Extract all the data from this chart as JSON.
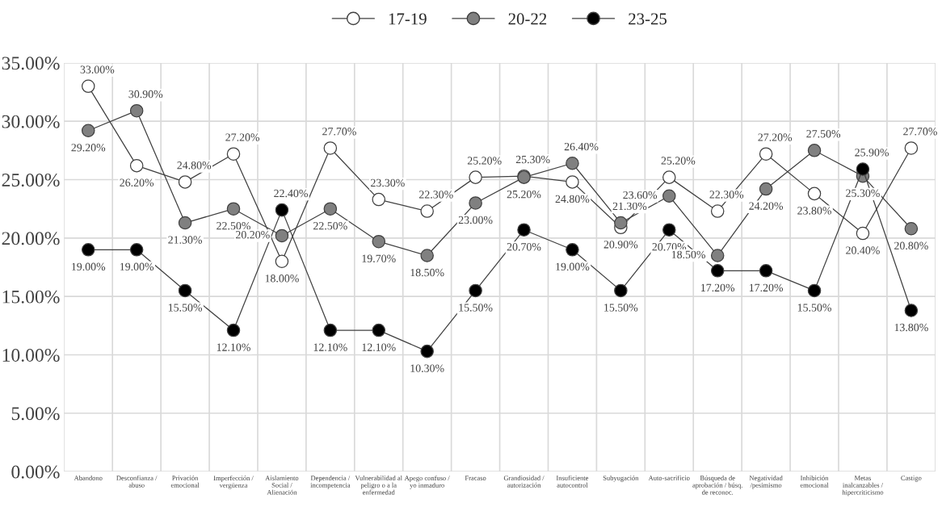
{
  "chart_data": {
    "type": "line",
    "categories": [
      "Abandono",
      "Desconfianza /\nabuso",
      "Privación\nemocional",
      "Imperfección /\nvergüenza",
      "Aislamiento\nSocial /\nAlienación",
      "Dependencia /\nincompetencia",
      "Vulnerabilidad al\npeligro o a la\nenfermedad",
      "Apego confuso /\nyo inmaduro",
      "Fracaso",
      "Grandiosidad /\nautorización",
      "Insuficiente\nautocontrol",
      "Subyugación",
      "Auto-sacrificio",
      "Búsqueda de\naprobación / búsq.\nde reconoc.",
      "Negatividad\n/pesimismo",
      "Inhibición\nemocional",
      "Metas\ninalcanzables /\nhipercriticismo",
      "Castigo"
    ],
    "series": [
      {
        "name": "17-19",
        "color": "#ffffff",
        "values": [
          33.0,
          26.2,
          24.8,
          27.2,
          18.0,
          27.7,
          23.3,
          22.3,
          25.2,
          25.3,
          24.8,
          20.9,
          25.2,
          22.3,
          27.2,
          23.8,
          20.4,
          27.7
        ],
        "value_labels": [
          "33.00%",
          "26.20%",
          "24.80%",
          "27.20%",
          "18.00%",
          "27.70%",
          "23.30%",
          "22.30%",
          "25.20%",
          "25.30%",
          "24.80%",
          "20.90%",
          "25.20%",
          "22.30%",
          "27.20%",
          "23.80%",
          "20.40%",
          "27.70%"
        ]
      },
      {
        "name": "20-22",
        "color": "#808080",
        "values": [
          29.2,
          30.9,
          21.3,
          22.5,
          20.2,
          22.5,
          19.7,
          18.5,
          23.0,
          25.2,
          26.4,
          21.3,
          23.6,
          18.5,
          24.2,
          27.5,
          25.3,
          20.8
        ],
        "value_labels": [
          "29.20%",
          "30.90%",
          "21.30%",
          "22.50%",
          "20.20%",
          "22.50%",
          "19.70%",
          "18.50%",
          "23.00%",
          "25.20%",
          "26.40%",
          "21.30%",
          "23.60%",
          "18.50%",
          "24.20%",
          "27.50%",
          "25.30%",
          "20.80%"
        ]
      },
      {
        "name": "23-25",
        "color": "#000000",
        "values": [
          19.0,
          19.0,
          15.5,
          12.1,
          22.4,
          12.1,
          12.1,
          10.3,
          15.5,
          20.7,
          19.0,
          15.5,
          20.7,
          17.2,
          17.2,
          15.5,
          25.9,
          13.8
        ],
        "value_labels": [
          "19.00%",
          "19.00%",
          "15.50%",
          "12.10%",
          "22.40%",
          "12.10%",
          "12.10%",
          "10.30%",
          "15.50%",
          "20.70%",
          "19.00%",
          "15.50%",
          "20.70%",
          "17.20%",
          "17.20%",
          "15.50%",
          "25.90%",
          "13.80%"
        ]
      }
    ],
    "ylim": [
      0,
      35
    ],
    "yticks": [
      {
        "value": 0,
        "label": "0.00%"
      },
      {
        "value": 5,
        "label": "5.00%"
      },
      {
        "value": 10,
        "label": "10.00%"
      },
      {
        "value": 15,
        "label": "15.00%"
      },
      {
        "value": 20,
        "label": "20.00%"
      },
      {
        "value": 25,
        "label": "25.00%"
      },
      {
        "value": 30,
        "label": "30.00%"
      },
      {
        "value": 35,
        "label": "35.00%"
      }
    ],
    "grid": true,
    "legend": "top",
    "marker": "circle",
    "line_style": "solid"
  }
}
